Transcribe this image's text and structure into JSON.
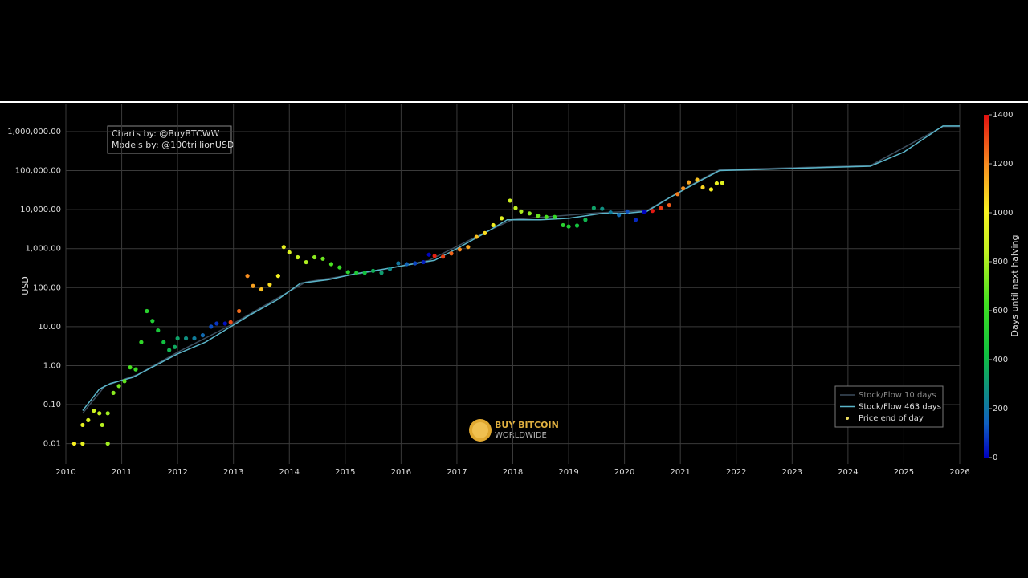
{
  "chart_data": {
    "type": "scatter",
    "annotation": [
      "Charts by: @BuyBTCWW",
      "Models by: @100trillionUSD"
    ],
    "logo": [
      "BUY BITCOIN",
      "WORLDWIDE"
    ],
    "y_label": "USD",
    "colorbar_label": "Days until next halving",
    "log_y": true,
    "grid": true,
    "legend": "lower right",
    "xlim": [
      2010,
      2026
    ],
    "xticks": [
      2010,
      2011,
      2012,
      2013,
      2014,
      2015,
      2016,
      2017,
      2018,
      2019,
      2020,
      2021,
      2022,
      2023,
      2024,
      2025,
      2026
    ],
    "ylim": [
      0.003,
      5000000
    ],
    "yticks": [
      0.01,
      {
        "value": 0.1,
        "label": "0.10"
      },
      {
        "value": 1,
        "label": "1.00"
      },
      {
        "value": 10,
        "label": "10.00"
      },
      {
        "value": 100,
        "label": "100.00"
      },
      {
        "value": 1000,
        "label": "1,000.00"
      },
      {
        "value": 10000,
        "label": "10,000.00"
      },
      {
        "value": 100000,
        "label": "100,000.00"
      },
      {
        "value": 1000000,
        "label": "1,000,000.00"
      }
    ],
    "clim": [
      0,
      1400
    ],
    "cticks": [
      0,
      200,
      400,
      600,
      800,
      1000,
      1200,
      1400
    ],
    "colorscale": [
      [
        0,
        "#0000c0"
      ],
      [
        0.1,
        "#1060c0"
      ],
      [
        0.2,
        "#109080"
      ],
      [
        0.3,
        "#10c040"
      ],
      [
        0.45,
        "#40e020"
      ],
      [
        0.6,
        "#c0f020"
      ],
      [
        0.72,
        "#f8f020"
      ],
      [
        0.85,
        "#f89020"
      ],
      [
        1,
        "#e01010"
      ]
    ],
    "series": [
      {
        "name": "Stock/Flow 10 days",
        "color": "#3c4c5c",
        "mode": "line",
        "x": [
          2010.3,
          2010.7,
          2011.3,
          2012.0,
          2012.9,
          2013.8,
          2014.3,
          2015.5,
          2016.5,
          2017.5,
          2018.0,
          2019.5,
          2020.4,
          2021.3,
          2021.7,
          2024.4,
          2025.7,
          2026.0
        ],
        "values": [
          0.06,
          0.3,
          0.6,
          2.2,
          10,
          55,
          140,
          260,
          500,
          2600,
          5600,
          8200,
          9500,
          52000,
          105000,
          135000,
          1350000,
          1350000
        ]
      },
      {
        "name": "Stock/Flow 463 days",
        "color": "#5ab4c8",
        "mode": "line",
        "x": [
          2010.3,
          2010.6,
          2010.8,
          2011.2,
          2011.6,
          2012.0,
          2012.5,
          2012.9,
          2013.3,
          2013.8,
          2014.2,
          2014.7,
          2015.2,
          2015.7,
          2016.2,
          2016.6,
          2017.0,
          2017.5,
          2017.9,
          2018.5,
          2019.0,
          2019.6,
          2020.0,
          2020.4,
          2020.8,
          2021.3,
          2021.7,
          2022.7,
          2023.5,
          2024.4,
          2025.0,
          2025.7,
          2026.0
        ],
        "values": [
          0.07,
          0.25,
          0.35,
          0.5,
          1,
          2,
          4,
          9,
          20,
          50,
          130,
          160,
          230,
          300,
          400,
          500,
          1000,
          2500,
          5500,
          5500,
          6000,
          8000,
          8000,
          9000,
          20000,
          50000,
          100000,
          110000,
          120000,
          130000,
          300000,
          1400000,
          1400000
        ]
      },
      {
        "name": "Price end of day",
        "color": "#f0e060",
        "mode": "markers",
        "x": [
          2010.15,
          2010.3,
          2010.3,
          2010.4,
          2010.5,
          2010.6,
          2010.65,
          2010.75,
          2010.75,
          2010.85,
          2010.95,
          2011.05,
          2011.15,
          2011.25,
          2011.35,
          2011.45,
          2011.55,
          2011.65,
          2011.75,
          2011.85,
          2011.95,
          2012.0,
          2012.15,
          2012.3,
          2012.45,
          2012.6,
          2012.7,
          2012.85,
          2012.95,
          2013.1,
          2013.25,
          2013.35,
          2013.5,
          2013.65,
          2013.8,
          2013.9,
          2014.0,
          2014.15,
          2014.3,
          2014.45,
          2014.6,
          2014.75,
          2014.9,
          2015.05,
          2015.2,
          2015.35,
          2015.5,
          2015.65,
          2015.8,
          2015.95,
          2016.1,
          2016.25,
          2016.4,
          2016.5,
          2016.6,
          2016.75,
          2016.9,
          2017.05,
          2017.2,
          2017.35,
          2017.5,
          2017.65,
          2017.8,
          2017.95,
          2018.05,
          2018.15,
          2018.3,
          2018.45,
          2018.6,
          2018.75,
          2018.9,
          2019.0,
          2019.15,
          2019.3,
          2019.45,
          2019.6,
          2019.75,
          2019.9,
          2020.05,
          2020.2,
          2020.35,
          2020.5,
          2020.65,
          2020.8,
          2020.95,
          2021.05,
          2021.15,
          2021.3,
          2021.4,
          2021.55,
          2021.65,
          2021.75
        ],
        "values": [
          0.01,
          0.03,
          0.01,
          0.04,
          0.07,
          0.06,
          0.03,
          0.01,
          0.06,
          0.2,
          0.3,
          0.4,
          0.9,
          0.8,
          4,
          25,
          14,
          8,
          4,
          2.5,
          3,
          5,
          5,
          5,
          6,
          10,
          12,
          12,
          13,
          25,
          200,
          110,
          90,
          120,
          200,
          1100,
          800,
          600,
          450,
          600,
          550,
          400,
          330,
          250,
          240,
          240,
          270,
          240,
          300,
          420,
          400,
          420,
          450,
          700,
          650,
          620,
          750,
          950,
          1100,
          2000,
          2500,
          4000,
          6000,
          17000,
          11000,
          9000,
          8000,
          7000,
          6500,
          6500,
          4000,
          3700,
          3900,
          5500,
          11000,
          10500,
          8500,
          7300,
          9000,
          5500,
          8800,
          9300,
          11000,
          13000,
          25000,
          35000,
          50000,
          58000,
          37000,
          33000,
          47000,
          48000
        ],
        "days": [
          1007,
          953,
          953,
          916,
          880,
          843,
          825,
          788,
          788,
          752,
          715,
          679,
          642,
          606,
          569,
          533,
          496,
          460,
          423,
          387,
          350,
          332,
          277,
          223,
          168,
          113,
          77,
          22,
          1303,
          1248,
          1194,
          1157,
          1102,
          1048,
          993,
          956,
          920,
          865,
          810,
          756,
          701,
          646,
          591,
          537,
          482,
          427,
          372,
          318,
          263,
          208,
          153,
          99,
          44,
          7,
          1372,
          1318,
          1263,
          1208,
          1153,
          1099,
          1044,
          989,
          935,
          880,
          843,
          807,
          752,
          697,
          642,
          588,
          533,
          496,
          442,
          387,
          332,
          277,
          223,
          168,
          113,
          58,
          4,
          1387,
          1332,
          1278,
          1223,
          1186,
          1150,
          1095,
          1059,
          1004,
          967,
          931
        ]
      }
    ]
  }
}
